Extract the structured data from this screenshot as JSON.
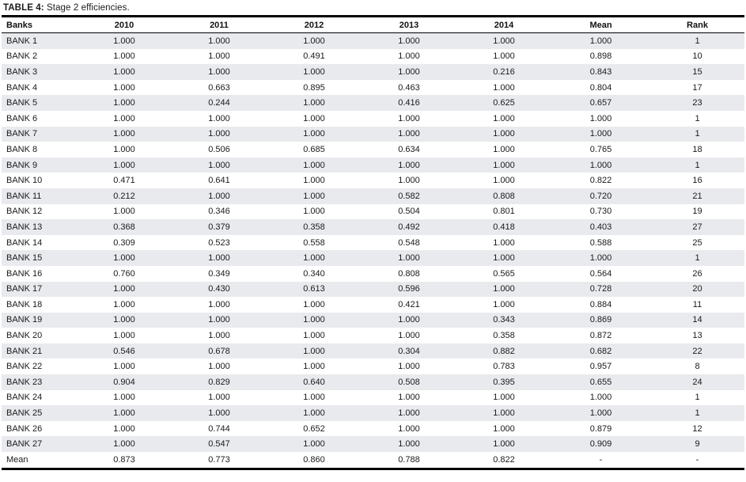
{
  "title": {
    "label": "TABLE 4:",
    "text": " Stage 2 efficiencies."
  },
  "colors": {
    "stripe": "#e9eaee",
    "rule": "#000000",
    "text": "#1a1a1a"
  },
  "table": {
    "columns": [
      "Banks",
      "2010",
      "2011",
      "2012",
      "2013",
      "2014",
      "Mean",
      "Rank"
    ],
    "rows": [
      {
        "bank": "BANK 1",
        "values": [
          "1.000",
          "1.000",
          "1.000",
          "1.000",
          "1.000",
          "1.000",
          "1"
        ]
      },
      {
        "bank": "BANK 2",
        "values": [
          "1.000",
          "1.000",
          "0.491",
          "1.000",
          "1.000",
          "0.898",
          "10"
        ]
      },
      {
        "bank": "BANK 3",
        "values": [
          "1.000",
          "1.000",
          "1.000",
          "1.000",
          "0.216",
          "0.843",
          "15"
        ]
      },
      {
        "bank": "BANK 4",
        "values": [
          "1.000",
          "0.663",
          "0.895",
          "0.463",
          "1.000",
          "0.804",
          "17"
        ]
      },
      {
        "bank": "BANK 5",
        "values": [
          "1.000",
          "0.244",
          "1.000",
          "0.416",
          "0.625",
          "0.657",
          "23"
        ]
      },
      {
        "bank": "BANK 6",
        "values": [
          "1.000",
          "1.000",
          "1.000",
          "1.000",
          "1.000",
          "1.000",
          "1"
        ]
      },
      {
        "bank": "BANK 7",
        "values": [
          "1.000",
          "1.000",
          "1.000",
          "1.000",
          "1.000",
          "1.000",
          "1"
        ]
      },
      {
        "bank": "BANK 8",
        "values": [
          "1.000",
          "0.506",
          "0.685",
          "0.634",
          "1.000",
          "0.765",
          "18"
        ]
      },
      {
        "bank": "BANK 9",
        "values": [
          "1.000",
          "1.000",
          "1.000",
          "1.000",
          "1.000",
          "1.000",
          "1"
        ]
      },
      {
        "bank": "BANK 10",
        "values": [
          "0.471",
          "0.641",
          "1.000",
          "1.000",
          "1.000",
          "0.822",
          "16"
        ]
      },
      {
        "bank": "BANK 11",
        "values": [
          "0.212",
          "1.000",
          "1.000",
          "0.582",
          "0.808",
          "0.720",
          "21"
        ]
      },
      {
        "bank": "BANK 12",
        "values": [
          "1.000",
          "0.346",
          "1.000",
          "0.504",
          "0.801",
          "0.730",
          "19"
        ]
      },
      {
        "bank": "BANK 13",
        "values": [
          "0.368",
          "0.379",
          "0.358",
          "0.492",
          "0.418",
          "0.403",
          "27"
        ]
      },
      {
        "bank": "BANK 14",
        "values": [
          "0.309",
          "0.523",
          "0.558",
          "0.548",
          "1.000",
          "0.588",
          "25"
        ]
      },
      {
        "bank": "BANK 15",
        "values": [
          "1.000",
          "1.000",
          "1.000",
          "1.000",
          "1.000",
          "1.000",
          "1"
        ]
      },
      {
        "bank": "BANK 16",
        "values": [
          "0.760",
          "0.349",
          "0.340",
          "0.808",
          "0.565",
          "0.564",
          "26"
        ]
      },
      {
        "bank": "BANK 17",
        "values": [
          "1.000",
          "0.430",
          "0.613",
          "0.596",
          "1.000",
          "0.728",
          "20"
        ]
      },
      {
        "bank": "BANK 18",
        "values": [
          "1.000",
          "1.000",
          "1.000",
          "0.421",
          "1.000",
          "0.884",
          "11"
        ]
      },
      {
        "bank": "BANK 19",
        "values": [
          "1.000",
          "1.000",
          "1.000",
          "1.000",
          "0.343",
          "0.869",
          "14"
        ]
      },
      {
        "bank": "BANK 20",
        "values": [
          "1.000",
          "1.000",
          "1.000",
          "1.000",
          "0.358",
          "0.872",
          "13"
        ]
      },
      {
        "bank": "BANK 21",
        "values": [
          "0.546",
          "0.678",
          "1.000",
          "0.304",
          "0.882",
          "0.682",
          "22"
        ]
      },
      {
        "bank": "BANK 22",
        "values": [
          "1.000",
          "1.000",
          "1.000",
          "1.000",
          "0.783",
          "0.957",
          "8"
        ]
      },
      {
        "bank": "BANK 23",
        "values": [
          "0.904",
          "0.829",
          "0.640",
          "0.508",
          "0.395",
          "0.655",
          "24"
        ]
      },
      {
        "bank": "BANK 24",
        "values": [
          "1.000",
          "1.000",
          "1.000",
          "1.000",
          "1.000",
          "1.000",
          "1"
        ]
      },
      {
        "bank": "BANK 25",
        "values": [
          "1.000",
          "1.000",
          "1.000",
          "1.000",
          "1.000",
          "1.000",
          "1"
        ]
      },
      {
        "bank": "BANK 26",
        "values": [
          "1.000",
          "0.744",
          "0.652",
          "1.000",
          "1.000",
          "0.879",
          "12"
        ]
      },
      {
        "bank": "BANK 27",
        "values": [
          "1.000",
          "0.547",
          "1.000",
          "1.000",
          "1.000",
          "0.909",
          "9"
        ]
      },
      {
        "bank": "Mean",
        "values": [
          "0.873",
          "0.773",
          "0.860",
          "0.788",
          "0.822",
          "-",
          "-"
        ]
      }
    ]
  }
}
